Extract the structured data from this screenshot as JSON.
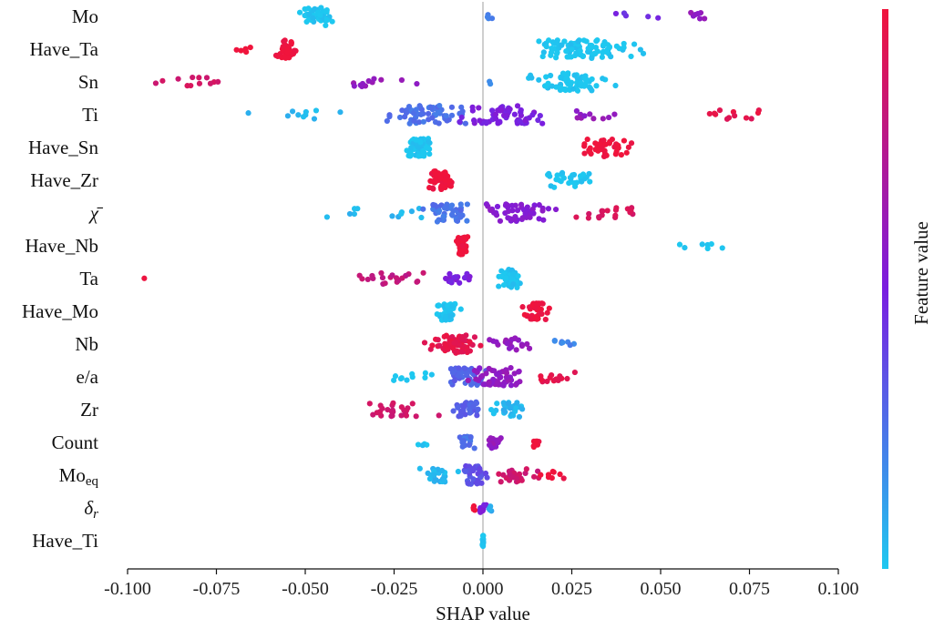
{
  "chart_data": {
    "type": "scatter",
    "subtype": "shap-beeswarm",
    "xlabel": "SHAP value",
    "xlim": [
      -0.1,
      0.1
    ],
    "xticks": [
      -0.1,
      -0.075,
      -0.05,
      -0.025,
      0.0,
      0.025,
      0.05,
      0.075,
      0.1
    ],
    "xtick_labels": [
      "-0.100",
      "-0.075",
      "-0.050",
      "-0.025",
      "0.000",
      "0.025",
      "0.050",
      "0.075",
      "0.100"
    ],
    "colorbar": {
      "label": "Feature value",
      "low_color": "#1ec8f0",
      "mid_color": "#7a1de0",
      "high_color": "#f0143c"
    },
    "features": [
      {
        "name": "Mo",
        "clusters": [
          {
            "center": -0.047,
            "spread": 0.006,
            "n": 45,
            "color": 0.0
          },
          {
            "center": 0.002,
            "spread": 0.003,
            "n": 4,
            "color": 0.2
          },
          {
            "center": 0.04,
            "spread": 0.01,
            "n": 5,
            "color": 0.45
          },
          {
            "center": 0.06,
            "spread": 0.003,
            "n": 7,
            "color": 0.6
          }
        ]
      },
      {
        "name": "Have_Ta",
        "clusters": [
          {
            "center": -0.055,
            "spread": 0.003,
            "n": 40,
            "color": 1.0
          },
          {
            "center": -0.068,
            "spread": 0.005,
            "n": 5,
            "color": 1.0
          },
          {
            "center": 0.028,
            "spread": 0.015,
            "n": 95,
            "color": 0.0
          }
        ]
      },
      {
        "name": "Sn",
        "clusters": [
          {
            "center": -0.08,
            "spread": 0.015,
            "n": 12,
            "color": 0.88
          },
          {
            "center": -0.03,
            "spread": 0.01,
            "n": 12,
            "color": 0.6
          },
          {
            "center": 0.002,
            "spread": 0.001,
            "n": 2,
            "color": 0.2
          },
          {
            "center": 0.025,
            "spread": 0.01,
            "n": 70,
            "color": 0.0
          }
        ]
      },
      {
        "name": "Ti",
        "clusters": [
          {
            "center": -0.055,
            "spread": 0.015,
            "n": 10,
            "color": 0.05
          },
          {
            "center": -0.015,
            "spread": 0.012,
            "n": 60,
            "color": 0.25
          },
          {
            "center": 0.005,
            "spread": 0.012,
            "n": 60,
            "color": 0.5
          },
          {
            "center": 0.03,
            "spread": 0.01,
            "n": 10,
            "color": 0.6
          },
          {
            "center": 0.07,
            "spread": 0.015,
            "n": 12,
            "color": 0.95
          }
        ]
      },
      {
        "name": "Have_Sn",
        "clusters": [
          {
            "center": -0.018,
            "spread": 0.004,
            "n": 70,
            "color": 0.0
          },
          {
            "center": 0.035,
            "spread": 0.008,
            "n": 40,
            "color": 1.0
          }
        ]
      },
      {
        "name": "Have_Zr",
        "clusters": [
          {
            "center": -0.012,
            "spread": 0.003,
            "n": 60,
            "color": 1.0
          },
          {
            "center": 0.025,
            "spread": 0.008,
            "n": 30,
            "color": 0.0
          }
        ]
      },
      {
        "name": "χ̄",
        "clusters": [
          {
            "center": -0.03,
            "spread": 0.012,
            "n": 12,
            "color": 0.05
          },
          {
            "center": -0.01,
            "spread": 0.006,
            "n": 50,
            "color": 0.25
          },
          {
            "center": 0.01,
            "spread": 0.01,
            "n": 50,
            "color": 0.55
          },
          {
            "center": 0.035,
            "spread": 0.01,
            "n": 18,
            "color": 0.9
          }
        ]
      },
      {
        "name": "Have_Nb",
        "clusters": [
          {
            "center": -0.006,
            "spread": 0.0015,
            "n": 40,
            "color": 1.0
          },
          {
            "center": 0.063,
            "spread": 0.01,
            "n": 7,
            "color": 0.0
          }
        ]
      },
      {
        "name": "Ta",
        "clusters": [
          {
            "center": -0.095,
            "spread": 0.0005,
            "n": 1,
            "color": 0.95
          },
          {
            "center": -0.025,
            "spread": 0.015,
            "n": 20,
            "color": 0.8
          },
          {
            "center": -0.007,
            "spread": 0.004,
            "n": 15,
            "color": 0.5
          },
          {
            "center": 0.008,
            "spread": 0.003,
            "n": 55,
            "color": 0.0
          }
        ]
      },
      {
        "name": "Have_Mo",
        "clusters": [
          {
            "center": -0.01,
            "spread": 0.003,
            "n": 50,
            "color": 0.0
          },
          {
            "center": 0.015,
            "spread": 0.003,
            "n": 35,
            "color": 1.0
          }
        ]
      },
      {
        "name": "Nb",
        "clusters": [
          {
            "center": -0.008,
            "spread": 0.008,
            "n": 70,
            "color": 0.95
          },
          {
            "center": 0.008,
            "spread": 0.006,
            "n": 20,
            "color": 0.6
          },
          {
            "center": 0.025,
            "spread": 0.005,
            "n": 8,
            "color": 0.2
          }
        ]
      },
      {
        "name": "e/a",
        "clusters": [
          {
            "center": -0.02,
            "spread": 0.005,
            "n": 10,
            "color": 0.0
          },
          {
            "center": -0.005,
            "spread": 0.006,
            "n": 50,
            "color": 0.3
          },
          {
            "center": 0.005,
            "spread": 0.008,
            "n": 50,
            "color": 0.6
          },
          {
            "center": 0.02,
            "spread": 0.008,
            "n": 15,
            "color": 0.95
          }
        ]
      },
      {
        "name": "Zr",
        "clusters": [
          {
            "center": -0.025,
            "spread": 0.01,
            "n": 25,
            "color": 0.85
          },
          {
            "center": -0.005,
            "spread": 0.004,
            "n": 30,
            "color": 0.3
          },
          {
            "center": 0.007,
            "spread": 0.004,
            "n": 30,
            "color": 0.05
          }
        ]
      },
      {
        "name": "Count",
        "clusters": [
          {
            "center": -0.016,
            "spread": 0.003,
            "n": 4,
            "color": 0.0
          },
          {
            "center": -0.005,
            "spread": 0.002,
            "n": 20,
            "color": 0.25
          },
          {
            "center": 0.003,
            "spread": 0.002,
            "n": 20,
            "color": 0.6
          },
          {
            "center": 0.015,
            "spread": 0.001,
            "n": 12,
            "color": 1.0
          }
        ]
      },
      {
        "name": "Mo_eq",
        "clusters": [
          {
            "center": -0.012,
            "spread": 0.005,
            "n": 25,
            "color": 0.05
          },
          {
            "center": -0.002,
            "spread": 0.004,
            "n": 40,
            "color": 0.35
          },
          {
            "center": 0.01,
            "spread": 0.007,
            "n": 25,
            "color": 0.85
          },
          {
            "center": 0.02,
            "spread": 0.004,
            "n": 8,
            "color": 1.0
          }
        ]
      },
      {
        "name": "δ_r",
        "clusters": [
          {
            "center": 0.0,
            "spread": 0.001,
            "n": 12,
            "color": 0.5
          },
          {
            "center": -0.002,
            "spread": 0.001,
            "n": 4,
            "color": 1.0
          },
          {
            "center": 0.002,
            "spread": 0.0005,
            "n": 4,
            "color": 0.1
          }
        ]
      },
      {
        "name": "Have_Ti",
        "clusters": [
          {
            "center": 0.0,
            "spread": 0.0002,
            "n": 18,
            "color": 0.0
          }
        ]
      }
    ]
  }
}
